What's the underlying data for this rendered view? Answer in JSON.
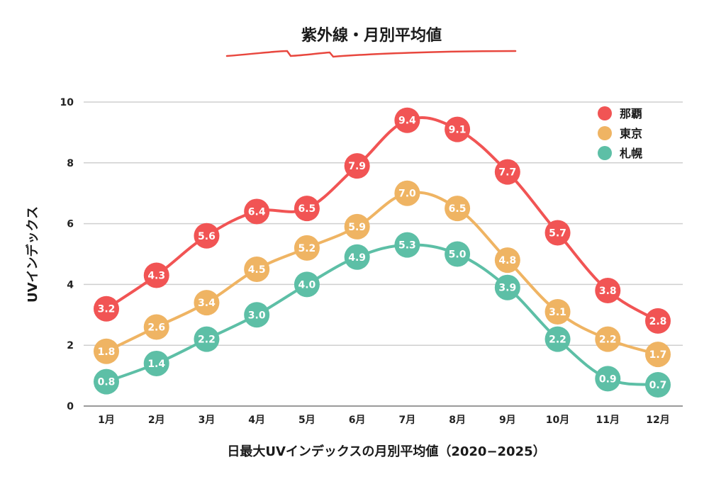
{
  "chart_data": {
    "type": "line",
    "title": "紫外線・月別平均値",
    "xlabel": "日最大UVインデックスの月別平均値（2020−2025）",
    "ylabel": "UVインデックス",
    "categories": [
      "1月",
      "2月",
      "3月",
      "4月",
      "5月",
      "6月",
      "7月",
      "8月",
      "9月",
      "10月",
      "11月",
      "12月"
    ],
    "ylim": [
      0,
      10
    ],
    "yticks": [
      0,
      2,
      4,
      6,
      8,
      10
    ],
    "grid": true,
    "legend_position": "top-right",
    "series": [
      {
        "name": "那覇",
        "color": "#f15454",
        "values": [
          3.2,
          4.3,
          5.6,
          6.4,
          6.5,
          7.9,
          9.4,
          9.1,
          7.7,
          5.7,
          3.8,
          2.8
        ]
      },
      {
        "name": "東京",
        "color": "#efb463",
        "values": [
          1.8,
          2.6,
          3.4,
          4.5,
          5.2,
          5.9,
          7.0,
          6.5,
          4.8,
          3.1,
          2.2,
          1.7
        ]
      },
      {
        "name": "札幌",
        "color": "#5dbfa6",
        "values": [
          0.8,
          1.4,
          2.2,
          3.0,
          4.0,
          4.9,
          5.3,
          5.0,
          3.9,
          2.2,
          0.9,
          0.7
        ]
      }
    ],
    "title_underline_color": "#e8473e"
  }
}
